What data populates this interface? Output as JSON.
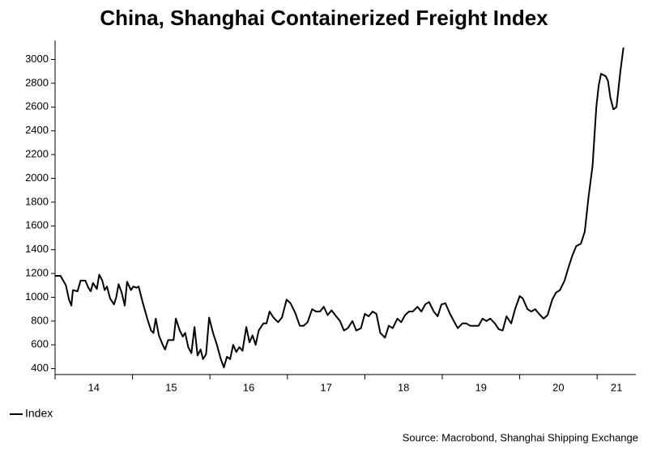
{
  "chart_data": {
    "type": "line",
    "title": "China, Shanghai Containerized Freight Index",
    "source": "Source: Macrobond, Shanghai Shipping Exchange",
    "x": [
      2014.0,
      2014.07,
      2014.14,
      2014.18,
      2014.21,
      2014.23,
      2014.29,
      2014.33,
      2014.39,
      2014.43,
      2014.46,
      2014.49,
      2014.54,
      2014.57,
      2014.61,
      2014.64,
      2014.67,
      2014.71,
      2014.76,
      2014.79,
      2014.82,
      2014.86,
      2014.9,
      2014.93,
      2014.98,
      2015.01,
      2015.05,
      2015.08,
      2015.13,
      2015.19,
      2015.24,
      2015.27,
      2015.3,
      2015.34,
      2015.39,
      2015.42,
      2015.46,
      2015.53,
      2015.56,
      2015.61,
      2015.65,
      2015.68,
      2015.72,
      2015.76,
      2015.8,
      2015.84,
      2015.88,
      2015.91,
      2015.95,
      2015.99,
      2016.04,
      2016.09,
      2016.14,
      2016.18,
      2016.22,
      2016.26,
      2016.3,
      2016.34,
      2016.38,
      2016.42,
      2016.47,
      2016.51,
      2016.55,
      2016.59,
      2016.63,
      2016.69,
      2016.73,
      2016.77,
      2016.82,
      2016.88,
      2016.93,
      2016.99,
      2017.04,
      2017.1,
      2017.16,
      2017.21,
      2017.26,
      2017.32,
      2017.37,
      2017.42,
      2017.47,
      2017.52,
      2017.57,
      2017.63,
      2017.68,
      2017.73,
      2017.78,
      2017.84,
      2017.89,
      2017.95,
      2018.0,
      2018.05,
      2018.1,
      2018.15,
      2018.2,
      2018.26,
      2018.31,
      2018.36,
      2018.42,
      2018.47,
      2018.52,
      2018.57,
      2018.62,
      2018.68,
      2018.73,
      2018.78,
      2018.83,
      2018.89,
      2018.94,
      2018.99,
      2019.04,
      2019.1,
      2019.15,
      2019.2,
      2019.26,
      2019.31,
      2019.36,
      2019.47,
      2019.52,
      2019.57,
      2019.62,
      2019.68,
      2019.73,
      2019.78,
      2019.83,
      2019.89,
      2019.94,
      2020.0,
      2020.04,
      2020.1,
      2020.15,
      2020.2,
      2020.25,
      2020.31,
      2020.36,
      2020.42,
      2020.47,
      2020.52,
      2020.58,
      2020.63,
      2020.68,
      2020.73,
      2020.79,
      2020.84,
      2020.89,
      2020.94,
      2020.99,
      2021.02,
      2021.05,
      2021.11,
      2021.14,
      2021.17,
      2021.21,
      2021.25,
      2021.3,
      2021.34
    ],
    "series": [
      {
        "name": "Index",
        "color": "#000000",
        "values": [
          1180,
          1180,
          1100,
          980,
          930,
          1060,
          1050,
          1140,
          1140,
          1080,
          1050,
          1120,
          1070,
          1190,
          1140,
          1060,
          1090,
          990,
          940,
          1000,
          1110,
          1040,
          930,
          1130,
          1060,
          1090,
          1080,
          1090,
          960,
          820,
          720,
          700,
          820,
          680,
          600,
          560,
          640,
          640,
          820,
          720,
          670,
          700,
          580,
          530,
          750,
          510,
          560,
          480,
          520,
          830,
          700,
          600,
          480,
          410,
          500,
          480,
          600,
          540,
          580,
          550,
          750,
          620,
          680,
          600,
          720,
          780,
          780,
          880,
          830,
          790,
          830,
          980,
          950,
          870,
          760,
          760,
          790,
          900,
          880,
          880,
          920,
          850,
          890,
          840,
          800,
          720,
          740,
          800,
          720,
          740,
          860,
          840,
          880,
          860,
          700,
          660,
          760,
          740,
          820,
          790,
          850,
          880,
          880,
          920,
          880,
          940,
          960,
          880,
          840,
          940,
          950,
          860,
          800,
          740,
          780,
          780,
          760,
          760,
          820,
          800,
          820,
          780,
          730,
          720,
          840,
          780,
          900,
          1010,
          990,
          900,
          880,
          900,
          860,
          820,
          850,
          980,
          1040,
          1060,
          1140,
          1250,
          1350,
          1430,
          1450,
          1550,
          1850,
          2100,
          2600,
          2780,
          2880,
          2860,
          2820,
          2680,
          2580,
          2600,
          2900,
          3100
        ]
      }
    ],
    "xlim": [
      2014,
      2021.5
    ],
    "xticks": [
      2014,
      2015,
      2016,
      2017,
      2018,
      2019,
      2020,
      2021
    ],
    "xlabels": [
      {
        "value": 2014.5,
        "label": "14"
      },
      {
        "value": 2015.5,
        "label": "15"
      },
      {
        "value": 2016.5,
        "label": "16"
      },
      {
        "value": 2017.5,
        "label": "17"
      },
      {
        "value": 2018.5,
        "label": "18"
      },
      {
        "value": 2019.5,
        "label": "19"
      },
      {
        "value": 2020.5,
        "label": "20"
      },
      {
        "value": 2021.25,
        "label": "21"
      }
    ],
    "ylim": [
      350,
      3160
    ],
    "yticks": [
      400,
      600,
      800,
      1000,
      1200,
      1400,
      1600,
      1800,
      2000,
      2200,
      2400,
      2600,
      2800,
      3000
    ],
    "grid": false
  }
}
